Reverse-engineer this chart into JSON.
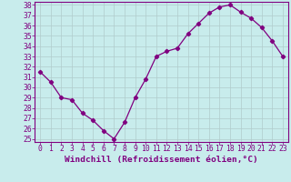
{
  "x": [
    0,
    1,
    2,
    3,
    4,
    5,
    6,
    7,
    8,
    9,
    10,
    11,
    12,
    13,
    14,
    15,
    16,
    17,
    18,
    19,
    20,
    21,
    22,
    23
  ],
  "y": [
    31.5,
    30.5,
    29.0,
    28.8,
    27.5,
    26.8,
    25.8,
    25.0,
    26.6,
    29.0,
    30.8,
    33.0,
    33.5,
    33.8,
    35.2,
    36.2,
    37.2,
    37.8,
    38.0,
    37.3,
    36.7,
    35.8,
    34.5,
    33.0
  ],
  "line_color": "#800080",
  "marker": "D",
  "markersize": 2.2,
  "linewidth": 0.9,
  "xlabel": "Windchill (Refroidissement éolien,°C)",
  "ylim": [
    25,
    38
  ],
  "xlim": [
    -0.5,
    23.5
  ],
  "yticks": [
    25,
    26,
    27,
    28,
    29,
    30,
    31,
    32,
    33,
    34,
    35,
    36,
    37,
    38
  ],
  "xticks": [
    0,
    1,
    2,
    3,
    4,
    5,
    6,
    7,
    8,
    9,
    10,
    11,
    12,
    13,
    14,
    15,
    16,
    17,
    18,
    19,
    20,
    21,
    22,
    23
  ],
  "bg_color": "#c8ecec",
  "grid_color": "#b0cccc",
  "text_color": "#800080",
  "tick_color": "#800080",
  "xlabel_fontsize": 6.8,
  "tick_fontsize": 5.8
}
